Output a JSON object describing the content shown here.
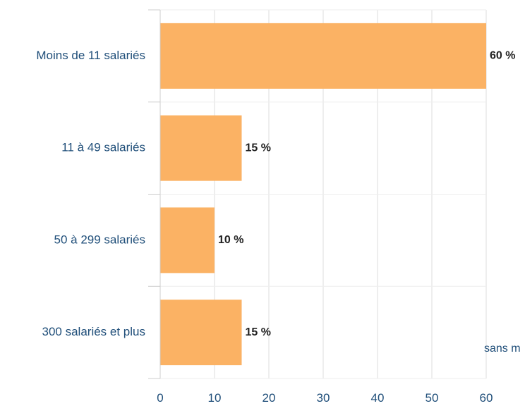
{
  "chart_data": {
    "type": "bar",
    "orientation": "horizontal",
    "categories": [
      "Moins de 11 salariés",
      "11 à 49 salariés",
      "50 à 299 salariés",
      "300 salariés et plus"
    ],
    "values": [
      60,
      15,
      10,
      15
    ],
    "value_labels": [
      "60 %",
      "15 %",
      "10 %",
      "15 %"
    ],
    "xlim": [
      0,
      60
    ],
    "xticks": [
      0,
      10,
      20,
      30,
      40,
      50,
      60
    ],
    "grid": true,
    "legend": "none",
    "bar_color": "#fbb264",
    "category_label_color": "#1f4e79",
    "tick_label_color": "#1f4e79",
    "value_label_color": "#222222",
    "annotation": "sans m"
  }
}
